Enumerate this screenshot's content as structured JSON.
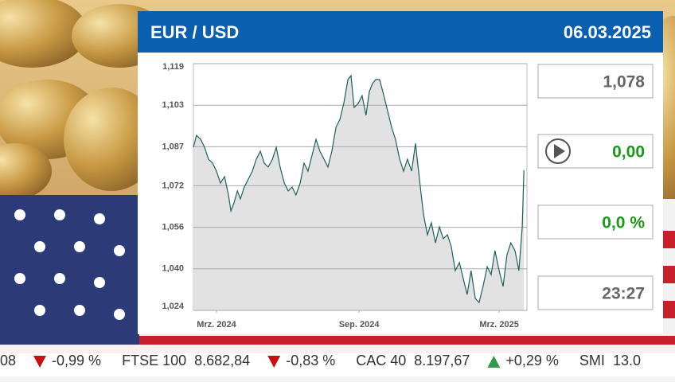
{
  "header": {
    "title": "EUR / USD",
    "date": "06.03.2025"
  },
  "stats": {
    "price": "1,078",
    "change": "0,00",
    "change_percent": "0,0 %",
    "time": "23:27"
  },
  "chart_data": {
    "type": "line",
    "color": "#1f5f5f",
    "area_color": "#e2e2e2",
    "grid": true,
    "xlim": [
      0,
      12
    ],
    "ylim": [
      1.024,
      1.119
    ],
    "xticks": [
      {
        "value": 0.83,
        "label": "Mrz. 2024"
      },
      {
        "value": 5.96,
        "label": "Sep. 2024"
      },
      {
        "value": 11.0,
        "label": "Mrz. 2025"
      }
    ],
    "yticks": [
      {
        "value": 1.024,
        "label": "1,024"
      },
      {
        "value": 1.04,
        "label": "1,040"
      },
      {
        "value": 1.056,
        "label": "1,056"
      },
      {
        "value": 1.072,
        "label": "1,072"
      },
      {
        "value": 1.087,
        "label": "1,087"
      },
      {
        "value": 1.103,
        "label": "1,103"
      },
      {
        "value": 1.119,
        "label": "1,119"
      }
    ],
    "x": [
      0,
      0.11,
      0.26,
      0.4,
      0.54,
      0.69,
      0.83,
      0.97,
      1.12,
      1.26,
      1.35,
      1.46,
      1.58,
      1.69,
      1.83,
      1.98,
      2.12,
      2.26,
      2.41,
      2.55,
      2.69,
      2.84,
      2.98,
      3.12,
      3.27,
      3.41,
      3.55,
      3.69,
      3.84,
      3.98,
      4.12,
      4.27,
      4.41,
      4.55,
      4.7,
      4.84,
      4.98,
      5.13,
      5.27,
      5.41,
      5.56,
      5.67,
      5.78,
      5.93,
      6.07,
      6.21,
      6.33,
      6.44,
      6.56,
      6.7,
      6.85,
      6.99,
      7.13,
      7.27,
      7.42,
      7.56,
      7.7,
      7.85,
      7.99,
      8.13,
      8.28,
      8.42,
      8.56,
      8.71,
      8.85,
      8.99,
      9.14,
      9.28,
      9.42,
      9.57,
      9.71,
      9.85,
      9.99,
      10.14,
      10.28,
      10.42,
      10.57,
      10.71,
      10.85,
      11.0,
      11.14,
      11.28,
      11.42,
      11.57,
      11.71,
      11.83,
      11.89
    ],
    "values": [
      1.0868,
      1.0914,
      1.0899,
      1.0868,
      1.0822,
      1.0807,
      1.0776,
      1.073,
      1.0755,
      1.0684,
      1.0623,
      1.0654,
      1.07,
      1.0669,
      1.0715,
      1.0746,
      1.0776,
      1.0822,
      1.0853,
      1.0807,
      1.0792,
      1.0822,
      1.0868,
      1.0792,
      1.073,
      1.07,
      1.0715,
      1.0684,
      1.073,
      1.0807,
      1.0776,
      1.0838,
      1.0899,
      1.0853,
      1.0822,
      1.0792,
      1.0853,
      1.0945,
      1.0975,
      1.1037,
      1.1129,
      1.1144,
      1.1021,
      1.1037,
      1.1067,
      1.0991,
      1.1083,
      1.1113,
      1.1129,
      1.1129,
      1.1067,
      1.1006,
      1.0945,
      1.0899,
      1.0822,
      1.0776,
      1.0822,
      1.0776,
      1.0883,
      1.0746,
      1.0608,
      1.0531,
      1.0577,
      1.05,
      1.0562,
      1.0516,
      1.0531,
      1.0485,
      1.0393,
      1.0424,
      1.0362,
      1.0301,
      1.0393,
      1.0286,
      1.027,
      1.0332,
      1.0408,
      1.0378,
      1.047,
      1.0393,
      1.0332,
      1.0454,
      1.05,
      1.047,
      1.0393,
      1.0562,
      1.078
    ]
  },
  "ticker": [
    {
      "value": "08",
      "change": "-0,99 %",
      "direction": "down"
    },
    {
      "name": "FTSE 100",
      "value": "8.682,84",
      "change": "-0,83 %",
      "direction": "down"
    },
    {
      "name": "CAC 40",
      "value": "8.197,67",
      "change": "+0,29 %",
      "direction": "up"
    },
    {
      "name": "SMI",
      "value": "13.0"
    }
  ]
}
